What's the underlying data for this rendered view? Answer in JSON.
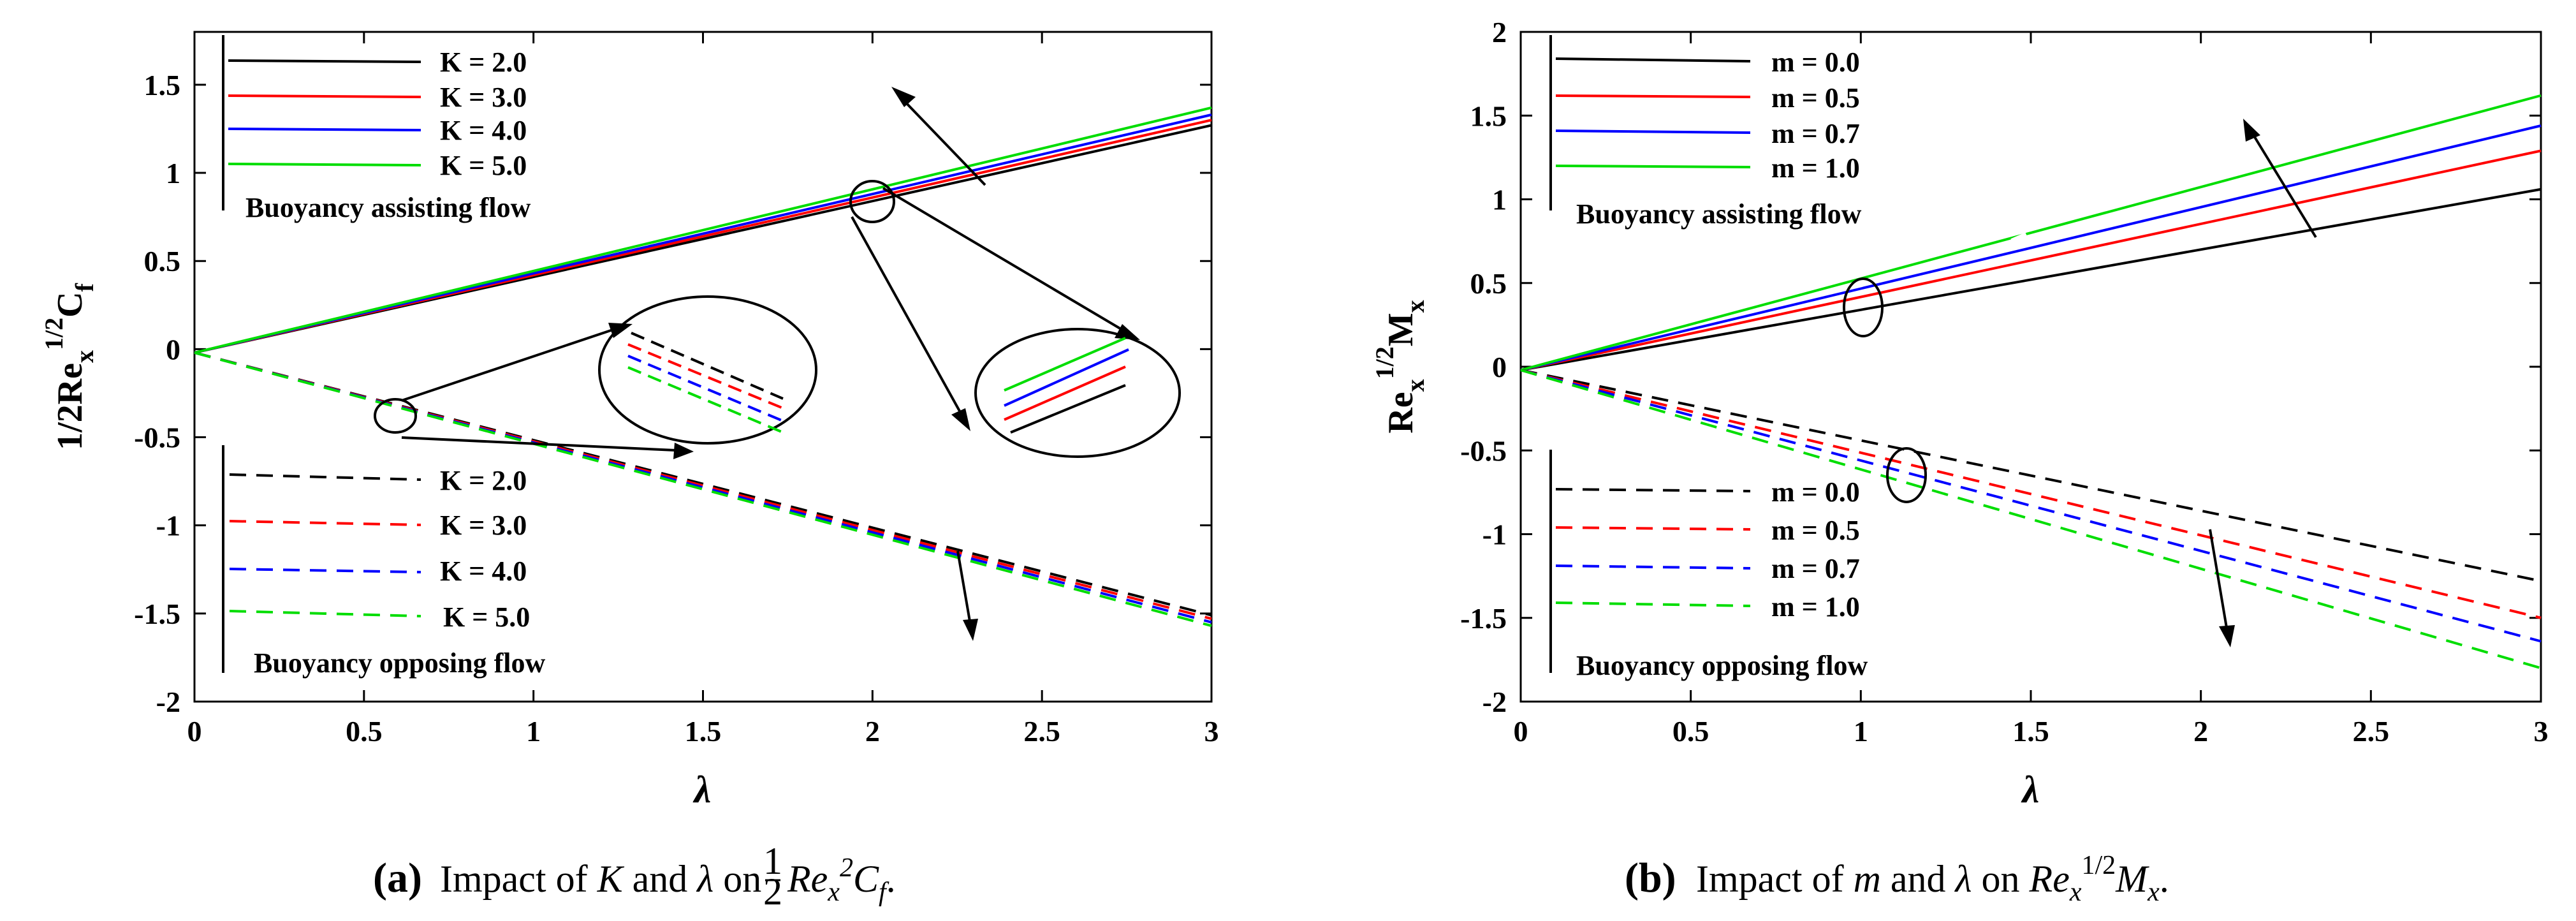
{
  "chart_data": [
    {
      "type": "line",
      "panel": "a",
      "xlabel": "λ",
      "ylabel": "1/2Re_x^{1/2}C_f",
      "ylabel_parts": {
        "main": "1/2Re",
        "sub": "x",
        "sup": "1/2",
        "tail": "C",
        "tail_sub": "f"
      },
      "xlim": [
        0,
        3
      ],
      "ylim": [
        -2,
        1.8
      ],
      "xticks": [
        0,
        0.5,
        1,
        1.5,
        2,
        2.5,
        3
      ],
      "xtick_labels": [
        "0",
        "0.5",
        "1",
        "1.5",
        "2",
        "2.5",
        "3"
      ],
      "yticks": [
        -2,
        -1.5,
        -1,
        -0.5,
        0,
        0.5,
        1,
        1.5
      ],
      "ytick_labels": [
        "-2",
        "-1.5",
        "-1",
        "-0.5",
        "0",
        "0.5",
        "1",
        "1.5"
      ],
      "x": [
        0,
        3
      ],
      "series": [
        {
          "name": "K = 2.0",
          "group": "assisting",
          "color": "#000000",
          "dash": false,
          "values": [
            -0.02,
            1.27
          ]
        },
        {
          "name": "K = 3.0",
          "group": "assisting",
          "color": "#ff0000",
          "dash": false,
          "values": [
            -0.02,
            1.3
          ]
        },
        {
          "name": "K = 4.0",
          "group": "assisting",
          "color": "#0000ff",
          "dash": false,
          "values": [
            -0.02,
            1.33
          ]
        },
        {
          "name": "K = 5.0",
          "group": "assisting",
          "color": "#00dd00",
          "dash": false,
          "values": [
            -0.02,
            1.37
          ]
        },
        {
          "name": "K = 2.0",
          "group": "opposing",
          "color": "#000000",
          "dash": true,
          "values": [
            -0.02,
            -1.51
          ]
        },
        {
          "name": "K = 3.0",
          "group": "opposing",
          "color": "#ff0000",
          "dash": true,
          "values": [
            -0.02,
            -1.53
          ]
        },
        {
          "name": "K = 4.0",
          "group": "opposing",
          "color": "#0000ff",
          "dash": true,
          "values": [
            -0.02,
            -1.55
          ]
        },
        {
          "name": "K = 5.0",
          "group": "opposing",
          "color": "#00dd00",
          "dash": true,
          "values": [
            -0.02,
            -1.57
          ]
        }
      ],
      "legend_titles": [
        "Buoyancy assisting flow",
        "Buoyancy opposing flow"
      ]
    },
    {
      "type": "line",
      "panel": "b",
      "xlabel": "λ",
      "ylabel": "Re_x^{1/2}M_x",
      "ylabel_parts": {
        "main": "Re",
        "sub": "x",
        "sup": "1/2",
        "tail": "M",
        "tail_sub": "x"
      },
      "xlim": [
        0,
        3
      ],
      "ylim": [
        -2,
        2
      ],
      "xticks": [
        0,
        0.5,
        1,
        1.5,
        2,
        2.5,
        3
      ],
      "xtick_labels": [
        "0",
        "0.5",
        "1",
        "1.5",
        "2",
        "2.5",
        "3"
      ],
      "yticks": [
        -2,
        -1.5,
        -1,
        -0.5,
        0,
        0.5,
        1,
        1.5,
        2
      ],
      "ytick_labels": [
        "-2",
        "-1.5",
        "-1",
        "-0.5",
        "0",
        "0.5",
        "1",
        "1.5",
        "2"
      ],
      "x": [
        0,
        3
      ],
      "series": [
        {
          "name": "m = 0.0",
          "group": "assisting",
          "color": "#000000",
          "dash": false,
          "values": [
            -0.02,
            1.06
          ]
        },
        {
          "name": "m = 0.5",
          "group": "assisting",
          "color": "#ff0000",
          "dash": false,
          "values": [
            -0.02,
            1.29
          ]
        },
        {
          "name": "m = 0.7",
          "group": "assisting",
          "color": "#0000ff",
          "dash": false,
          "values": [
            -0.02,
            1.44
          ]
        },
        {
          "name": "m = 1.0",
          "group": "assisting",
          "color": "#00dd00",
          "dash": false,
          "values": [
            -0.02,
            1.62
          ]
        },
        {
          "name": "m = 0.0",
          "group": "opposing",
          "color": "#000000",
          "dash": true,
          "values": [
            -0.02,
            -1.28
          ]
        },
        {
          "name": "m = 0.5",
          "group": "opposing",
          "color": "#ff0000",
          "dash": true,
          "values": [
            -0.02,
            -1.5
          ]
        },
        {
          "name": "m = 0.7",
          "group": "opposing",
          "color": "#0000ff",
          "dash": true,
          "values": [
            -0.02,
            -1.64
          ]
        },
        {
          "name": "m = 1.0",
          "group": "opposing",
          "color": "#00dd00",
          "dash": true,
          "values": [
            -0.02,
            -1.8
          ]
        }
      ],
      "legend_titles": [
        "Buoyancy assisting flow",
        "Buoyancy opposing flow"
      ]
    }
  ],
  "captions": {
    "a": {
      "label": "(a)",
      "prefix": "Impact of ",
      "v1": "K",
      "and": " and ",
      "v2": "λ",
      "on": " on ",
      "math": "Re",
      "math_sub": "x",
      "math_sup": "2",
      "math_tail": "C",
      "math_tail_sub": "f",
      "frac_num": "1",
      "frac_den": "2",
      "end": "."
    },
    "b": {
      "label": "(b)",
      "prefix": "Impact of ",
      "v1": "m",
      "and": " and ",
      "v2": "λ",
      "on": " on ",
      "math": "Re",
      "math_sub": "x",
      "math_sup": "1/2",
      "math_tail": "M",
      "math_tail_sub": "x",
      "end": "."
    }
  }
}
